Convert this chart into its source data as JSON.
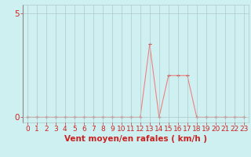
{
  "x": [
    0,
    1,
    2,
    3,
    4,
    5,
    6,
    7,
    8,
    9,
    10,
    11,
    12,
    13,
    14,
    15,
    16,
    17,
    18,
    19,
    20,
    21,
    22,
    23
  ],
  "y": [
    0,
    0,
    0,
    0,
    0,
    0,
    0,
    0,
    0,
    0,
    0,
    0,
    0,
    3.5,
    0,
    2.0,
    2.0,
    2.0,
    0,
    0,
    0,
    0,
    0,
    0
  ],
  "background_color": "#cff0f0",
  "line_color": "#f08080",
  "marker_color": "#d04040",
  "grid_color": "#b0c8c8",
  "axis_color": "#cc2222",
  "xlabel": "Vent moyen/en rafales ( km/h )",
  "yticks": [
    0,
    5
  ],
  "xticks": [
    0,
    1,
    2,
    3,
    4,
    5,
    6,
    7,
    8,
    9,
    10,
    11,
    12,
    13,
    14,
    15,
    16,
    17,
    18,
    19,
    20,
    21,
    22,
    23
  ],
  "ylim": [
    -0.25,
    5.4
  ],
  "xlim": [
    -0.5,
    23.5
  ],
  "tick_fontsize": 6.5,
  "xlabel_fontsize": 7.5
}
